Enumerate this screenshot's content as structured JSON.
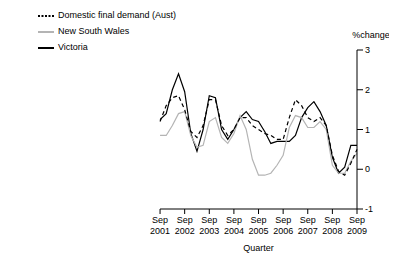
{
  "chart_data": {
    "type": "line",
    "x_label": "Quarter",
    "y_label": "%change",
    "categories": [
      "Sep 2001",
      null,
      null,
      null,
      "Sep 2002",
      null,
      null,
      null,
      "Sep 2003",
      null,
      null,
      null,
      "Sep 2004",
      null,
      null,
      null,
      "Sep 2005",
      null,
      null,
      null,
      "Sep 2006",
      null,
      null,
      null,
      "Sep 2007",
      null,
      null,
      null,
      "Sep 2008",
      null,
      null,
      null,
      "Sep 2009"
    ],
    "series": [
      {
        "name": "Victoria",
        "color": "#000000",
        "line_style": "solid",
        "values": [
          1.25,
          1.4,
          2.0,
          2.4,
          1.95,
          0.9,
          0.45,
          1.0,
          1.85,
          1.8,
          1.0,
          0.75,
          1.0,
          1.3,
          1.45,
          1.25,
          1.2,
          0.95,
          0.65,
          0.7,
          0.7,
          0.7,
          0.85,
          1.3,
          1.55,
          1.7,
          1.45,
          1.1,
          0.3,
          -0.1,
          0.05,
          0.6,
          0.6
        ]
      },
      {
        "name": "New South Wales",
        "color": "#b4b4b4",
        "line_style": "solid",
        "values": [
          0.85,
          0.85,
          1.1,
          1.4,
          1.45,
          0.85,
          0.55,
          0.6,
          1.2,
          1.3,
          0.8,
          0.65,
          0.9,
          1.35,
          1.0,
          0.25,
          -0.15,
          -0.15,
          -0.1,
          0.1,
          0.35,
          1.05,
          1.35,
          1.3,
          1.05,
          1.05,
          1.2,
          1.0,
          0.1,
          -0.1,
          -0.1,
          0.2,
          0.4
        ]
      },
      {
        "name": "Domestic final demand (Aust)",
        "color": "#000000",
        "line_style": "dashed",
        "values": [
          1.2,
          1.6,
          1.8,
          1.85,
          1.5,
          0.95,
          0.8,
          1.1,
          1.75,
          1.75,
          1.1,
          0.85,
          1.0,
          1.3,
          1.3,
          1.1,
          1.0,
          0.9,
          0.85,
          0.75,
          0.75,
          1.3,
          1.75,
          1.6,
          1.3,
          1.2,
          1.3,
          1.1,
          0.35,
          -0.05,
          -0.15,
          0.15,
          0.5
        ]
      }
    ],
    "ylim": [
      -1,
      3
    ],
    "yticks": [
      -1,
      0,
      1,
      2,
      3
    ],
    "legend": "top-left",
    "grid": false
  }
}
